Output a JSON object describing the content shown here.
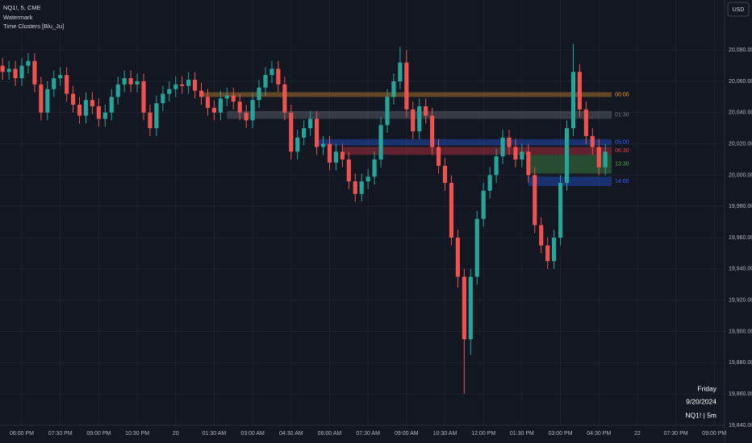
{
  "chart_data": {
    "type": "candlestick",
    "title": "NQ1!, 5, CME",
    "indicators": [
      "Watermark",
      "Time Clusters [Blu_Ju]"
    ],
    "currency": "USD",
    "watermark": {
      "day": "Friday",
      "date": "9/20/2024",
      "symbol": "NQ1! | 5m"
    },
    "up_color": "#26a69a",
    "down_color": "#ef5350",
    "grid": true,
    "xlim": [
      -3.4,
      109.6
    ],
    "ylim": [
      19840,
      20112
    ],
    "xticks": [
      {
        "value": 0,
        "label": "06:00 PM"
      },
      {
        "value": 6,
        "label": "07:30 PM"
      },
      {
        "value": 12,
        "label": "09:00 PM"
      },
      {
        "value": 18,
        "label": "10:30 PM"
      },
      {
        "value": 24,
        "label": "20"
      },
      {
        "value": 30,
        "label": "01:30 AM"
      },
      {
        "value": 36,
        "label": "03:00 AM"
      },
      {
        "value": 42,
        "label": "04:30 AM"
      },
      {
        "value": 48,
        "label": "06:00 AM"
      },
      {
        "value": 54,
        "label": "07:30 AM"
      },
      {
        "value": 60,
        "label": "09:00 AM"
      },
      {
        "value": 66,
        "label": "10:30 AM"
      },
      {
        "value": 72,
        "label": "12:00 PM"
      },
      {
        "value": 78,
        "label": "01:30 PM"
      },
      {
        "value": 84,
        "label": "03:00 PM"
      },
      {
        "value": 90,
        "label": "04:30 PM"
      },
      {
        "value": 96,
        "label": "22"
      },
      {
        "value": 102,
        "label": "07:30 PM"
      },
      {
        "value": 108,
        "label": "09:00 PM"
      }
    ],
    "yticks": [
      {
        "value": 19840,
        "label": "19,840.00"
      },
      {
        "value": 19860,
        "label": "19,860.00"
      },
      {
        "value": 19880,
        "label": "19,880.00"
      },
      {
        "value": 19900,
        "label": "19,900.00"
      },
      {
        "value": 19920,
        "label": "19,920.00"
      },
      {
        "value": 19940,
        "label": "19,940.00"
      },
      {
        "value": 19960,
        "label": "19,960.00"
      },
      {
        "value": 19980,
        "label": "19,980.00"
      },
      {
        "value": 20000,
        "label": "20,000.00"
      },
      {
        "value": 20020,
        "label": "20,020.00"
      },
      {
        "value": 20040,
        "label": "20,040.00"
      },
      {
        "value": 20060,
        "label": "20,060.00"
      },
      {
        "value": 20080,
        "label": "20,080.00"
      }
    ],
    "zones": [
      {
        "label": "00:00",
        "color": "#f59d2a",
        "start": 28,
        "end": 92,
        "top": 20053,
        "bottom": 20050
      },
      {
        "label": "01:30",
        "color": "#787b86",
        "start": 32,
        "end": 92,
        "top": 20041,
        "bottom": 20036
      },
      {
        "label": "05:00",
        "color": "#2962ff",
        "start": 46,
        "end": 92,
        "top": 20023,
        "bottom": 20019
      },
      {
        "label": "06:30",
        "color": "#f23645",
        "start": 50,
        "end": 92,
        "top": 20018,
        "bottom": 20013
      },
      {
        "label": "13:30",
        "color": "#4caf50",
        "start": 79,
        "end": 92,
        "top": 20013,
        "bottom": 20001
      },
      {
        "label": "14:00",
        "color": "#2962ff",
        "start": 79,
        "end": 92,
        "top": 19999,
        "bottom": 19993
      }
    ],
    "x": [
      -3,
      -2,
      -1,
      0,
      1,
      2,
      3,
      4,
      5,
      6,
      7,
      8,
      9,
      10,
      11,
      12,
      13,
      14,
      15,
      16,
      17,
      18,
      19,
      20,
      21,
      22,
      23,
      24,
      25,
      26,
      27,
      28,
      29,
      30,
      31,
      32,
      33,
      34,
      35,
      36,
      37,
      38,
      39,
      40,
      41,
      42,
      43,
      44,
      45,
      46,
      47,
      48,
      49,
      50,
      51,
      52,
      53,
      54,
      55,
      56,
      57,
      58,
      59,
      60,
      61,
      62,
      63,
      64,
      65,
      66,
      67,
      68,
      69,
      70,
      71,
      72,
      73,
      74,
      75,
      76,
      77,
      78,
      79,
      80,
      81,
      82,
      83,
      84,
      85,
      86,
      87,
      88,
      89,
      90,
      91
    ],
    "open": [
      20070,
      20066,
      20068,
      20062,
      20070,
      20073,
      20058,
      20040,
      20055,
      20062,
      20064,
      20052,
      20045,
      20038,
      20048,
      20044,
      20036,
      20040,
      20050,
      20058,
      20062,
      20058,
      20060,
      20040,
      20030,
      20046,
      20052,
      20055,
      20058,
      20057,
      20061,
      20054,
      20050,
      20043,
      20040,
      20049,
      20051,
      20047,
      20040,
      20035,
      20048,
      20056,
      20064,
      20068,
      20058,
      20040,
      20015,
      20024,
      20030,
      20036,
      20018,
      20020,
      20008,
      20015,
      20010,
      19996,
      19988,
      19996,
      19999,
      20010,
      20032,
      20050,
      20060,
      20072,
      20042,
      20028,
      20044,
      20038,
      20018,
      20006,
      19995,
      19960,
      19935,
      19895,
      19935,
      19972,
      19990,
      20000,
      20012,
      20024,
      20018,
      20010,
      20015,
      20000,
      19968,
      19955,
      19945,
      19960,
      19995,
      20030,
      20066,
      20042,
      20025,
      20018,
      20005
    ],
    "high": [
      20075,
      20073,
      20073,
      20075,
      20078,
      20078,
      20063,
      20060,
      20067,
      20069,
      20069,
      20057,
      20050,
      20053,
      20053,
      20049,
      20045,
      20055,
      20063,
      20067,
      20067,
      20065,
      20065,
      20045,
      20051,
      20057,
      20060,
      20063,
      20063,
      20066,
      20066,
      20059,
      20055,
      20048,
      20054,
      20056,
      20056,
      20052,
      20045,
      20053,
      20061,
      20069,
      20073,
      20073,
      20063,
      20045,
      20029,
      20035,
      20041,
      20041,
      20025,
      20025,
      20020,
      20020,
      20015,
      20001,
      20001,
      20004,
      20015,
      20037,
      20055,
      20065,
      20082,
      20080,
      20047,
      20049,
      20049,
      20043,
      20023,
      20011,
      20000,
      19965,
      19940,
      19940,
      19977,
      19995,
      20005,
      20017,
      20029,
      20029,
      20023,
      20020,
      20020,
      20005,
      19973,
      19960,
      19965,
      20000,
      20035,
      20084,
      20071,
      20047,
      20030,
      20023,
      20020
    ],
    "low": [
      20061,
      20061,
      20057,
      20057,
      20065,
      20053,
      20035,
      20035,
      20050,
      20057,
      20047,
      20040,
      20033,
      20033,
      20039,
      20031,
      20031,
      20035,
      20045,
      20053,
      20053,
      20053,
      20035,
      20025,
      20025,
      20041,
      20047,
      20050,
      20052,
      20052,
      20049,
      20045,
      20038,
      20035,
      20035,
      20044,
      20042,
      20035,
      20030,
      20030,
      20043,
      20051,
      20059,
      20053,
      20035,
      20010,
      20010,
      20019,
      20025,
      20013,
      20013,
      20003,
      20003,
      20005,
      19991,
      19983,
      19983,
      19991,
      19994,
      20005,
      20027,
      20045,
      20055,
      20037,
      20023,
      20023,
      20033,
      20013,
      20001,
      19990,
      19955,
      19928,
      19860,
      19885,
      19930,
      19967,
      19985,
      19995,
      20007,
      20013,
      20005,
      20005,
      19995,
      19963,
      19950,
      19940,
      19940,
      19955,
      19990,
      20025,
      20037,
      20020,
      20013,
      20000,
      20000
    ],
    "close": [
      20066,
      20068,
      20062,
      20070,
      20073,
      20058,
      20040,
      20055,
      20062,
      20064,
      20052,
      20045,
      20038,
      20048,
      20044,
      20036,
      20040,
      20050,
      20058,
      20062,
      20058,
      20060,
      20040,
      20030,
      20046,
      20052,
      20055,
      20058,
      20057,
      20061,
      20054,
      20050,
      20043,
      20040,
      20049,
      20051,
      20047,
      20040,
      20035,
      20048,
      20056,
      20064,
      20068,
      20058,
      20040,
      20015,
      20024,
      20030,
      20036,
      20018,
      20020,
      20008,
      20015,
      20010,
      19996,
      19988,
      19996,
      19999,
      20010,
      20032,
      20050,
      20060,
      20072,
      20042,
      20028,
      20044,
      20038,
      20018,
      20006,
      19995,
      19960,
      19935,
      19895,
      19935,
      19972,
      19990,
      20000,
      20012,
      20024,
      20018,
      20010,
      20015,
      20000,
      19968,
      19955,
      19945,
      19960,
      19995,
      20030,
      20066,
      20042,
      20025,
      20018,
      20005,
      20015
    ]
  }
}
